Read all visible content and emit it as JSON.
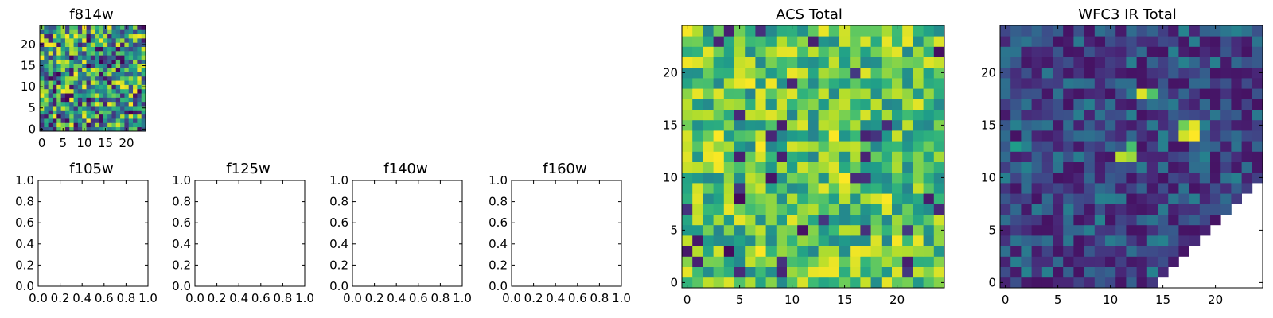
{
  "figure_background": "#ffffff",
  "chart_data": [
    {
      "id": "f814w",
      "type": "heatmap",
      "title": "f814w",
      "grid_size": 25,
      "colormap": "viridis",
      "xlim": [
        -0.5,
        24.5
      ],
      "ylim": [
        -0.5,
        24.5
      ],
      "xticks": [
        0,
        5,
        10,
        15,
        20
      ],
      "xticklabels": [
        "0",
        "5",
        "10",
        "15",
        "20"
      ],
      "yticks": [
        0,
        5,
        10,
        15,
        20
      ],
      "yticklabels": [
        "0",
        "5",
        "10",
        "15",
        "20"
      ],
      "pattern": "uniform_noise",
      "seed": 11,
      "value_range": [
        0.0,
        1.0
      ],
      "hot_cells": [],
      "masked_region": "none"
    },
    {
      "id": "f105w",
      "type": "empty",
      "title": "f105w",
      "xlim": [
        0,
        1
      ],
      "ylim": [
        0,
        1
      ],
      "xticks": [
        0,
        0.2,
        0.4,
        0.6,
        0.8,
        1.0
      ],
      "xticklabels": [
        "0.0",
        "0.2",
        "0.4",
        "0.6",
        "0.8",
        "1.0"
      ],
      "yticks": [
        0,
        0.2,
        0.4,
        0.6,
        0.8,
        1.0
      ],
      "yticklabels": [
        "0.0",
        "0.2",
        "0.4",
        "0.6",
        "0.8",
        "1.0"
      ]
    },
    {
      "id": "f125w",
      "type": "empty",
      "title": "f125w",
      "xlim": [
        0,
        1
      ],
      "ylim": [
        0,
        1
      ],
      "xticks": [
        0,
        0.2,
        0.4,
        0.6,
        0.8,
        1.0
      ],
      "xticklabels": [
        "0.0",
        "0.2",
        "0.4",
        "0.6",
        "0.8",
        "1.0"
      ],
      "yticks": [
        0,
        0.2,
        0.4,
        0.6,
        0.8,
        1.0
      ],
      "yticklabels": [
        "0.0",
        "0.2",
        "0.4",
        "0.6",
        "0.8",
        "1.0"
      ]
    },
    {
      "id": "f140w",
      "type": "empty",
      "title": "f140w",
      "xlim": [
        0,
        1
      ],
      "ylim": [
        0,
        1
      ],
      "xticks": [
        0,
        0.2,
        0.4,
        0.6,
        0.8,
        1.0
      ],
      "xticklabels": [
        "0.0",
        "0.2",
        "0.4",
        "0.6",
        "0.8",
        "1.0"
      ],
      "yticks": [
        0,
        0.2,
        0.4,
        0.6,
        0.8,
        1.0
      ],
      "yticklabels": [
        "0.0",
        "0.2",
        "0.4",
        "0.6",
        "0.8",
        "1.0"
      ]
    },
    {
      "id": "f160w",
      "type": "empty",
      "title": "f160w",
      "xlim": [
        0,
        1
      ],
      "ylim": [
        0,
        1
      ],
      "xticks": [
        0,
        0.2,
        0.4,
        0.6,
        0.8,
        1.0
      ],
      "xticklabels": [
        "0.0",
        "0.2",
        "0.4",
        "0.6",
        "0.8",
        "1.0"
      ],
      "yticks": [
        0,
        0.2,
        0.4,
        0.6,
        0.8,
        1.0
      ],
      "yticklabels": [
        "0.0",
        "0.2",
        "0.4",
        "0.6",
        "0.8",
        "1.0"
      ]
    },
    {
      "id": "acs-total",
      "type": "heatmap",
      "title": "ACS Total",
      "grid_size": 25,
      "colormap": "viridis",
      "xlim": [
        -0.5,
        24.5
      ],
      "ylim": [
        -0.5,
        24.5
      ],
      "xticks": [
        0,
        5,
        10,
        15,
        20
      ],
      "xticklabels": [
        "0",
        "5",
        "10",
        "15",
        "20"
      ],
      "yticks": [
        0,
        5,
        10,
        15,
        20
      ],
      "yticklabels": [
        "0",
        "5",
        "10",
        "15",
        "20"
      ],
      "pattern": "high_noise",
      "seed": 23,
      "value_range": [
        0.45,
        1.0
      ],
      "hot_cells": [],
      "masked_region": "none"
    },
    {
      "id": "wfc3-ir-total",
      "type": "heatmap",
      "title": "WFC3 IR Total",
      "grid_size": 25,
      "colormap": "viridis",
      "xlim": [
        -0.5,
        24.5
      ],
      "ylim": [
        -0.5,
        24.5
      ],
      "xticks": [
        0,
        5,
        10,
        15,
        20
      ],
      "xticklabels": [
        "0",
        "5",
        "10",
        "15",
        "20"
      ],
      "yticks": [
        0,
        5,
        10,
        15,
        20
      ],
      "yticklabels": [
        "0",
        "5",
        "10",
        "15",
        "20"
      ],
      "pattern": "low_noise",
      "seed": 37,
      "value_range": [
        0.05,
        0.45
      ],
      "hot_cells": [
        {
          "col": 13,
          "row": 18,
          "value": 0.95
        },
        {
          "col": 14,
          "row": 18,
          "value": 0.72
        },
        {
          "col": 17,
          "row": 14,
          "value": 0.93
        },
        {
          "col": 18,
          "row": 14,
          "value": 1.0
        },
        {
          "col": 18,
          "row": 15,
          "value": 0.96
        },
        {
          "col": 17,
          "row": 15,
          "value": 0.78
        },
        {
          "col": 11,
          "row": 12,
          "value": 0.9
        },
        {
          "col": 12,
          "row": 12,
          "value": 0.85
        },
        {
          "col": 12,
          "row": 13,
          "value": 0.7
        },
        {
          "col": 1,
          "row": 13,
          "value": 0.55
        }
      ],
      "masked_region": "lower-right diagonal (no data)"
    }
  ]
}
